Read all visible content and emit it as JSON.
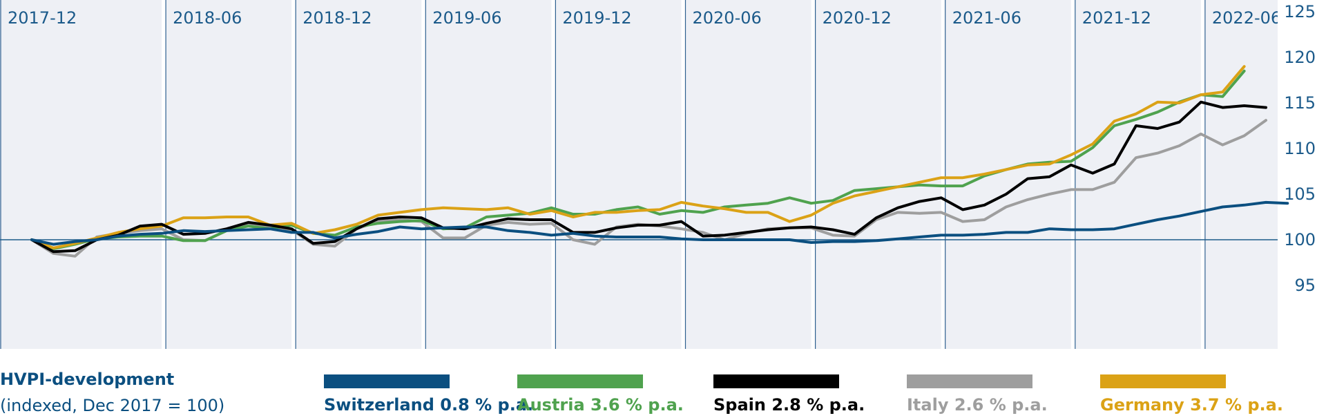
{
  "chart_data": {
    "type": "line",
    "title": "HVPI-development",
    "subtitle": "(indexed, Dec 2017 = 100)",
    "x_labels": [
      "2017-12",
      "2018-06",
      "2018-12",
      "2019-06",
      "2019-12",
      "2020-06",
      "2020-12",
      "2021-06",
      "2021-12",
      "2022-06"
    ],
    "x_range": [
      "2017-12",
      "2022-08"
    ],
    "y_range": [
      95,
      125
    ],
    "y_ticks": [
      "95",
      "100",
      "105",
      "110",
      "115",
      "120",
      "125"
    ],
    "reference_line": 100,
    "grid": "vertical bands and lines",
    "legend_position": "bottom",
    "series": [
      {
        "name": "Switzerland 0.8 % p.a.",
        "color": "#0b4f80",
        "values": [
          100,
          99.5,
          99.8,
          100.0,
          100.4,
          100.6,
          100.7,
          101.0,
          100.9,
          101.0,
          101.1,
          101.2,
          100.8,
          100.8,
          100.2,
          100.6,
          100.9,
          101.4,
          101.2,
          101.3,
          101.4,
          101.4,
          101.0,
          100.8,
          100.5,
          100.7,
          100.4,
          100.3,
          100.3,
          100.3,
          100.1,
          100.0,
          100.0,
          100.0,
          100.0,
          100.0,
          99.7,
          99.8,
          99.8,
          99.9,
          100.1,
          100.3,
          100.5,
          100.5,
          100.6,
          100.8,
          100.8,
          101.2,
          101.1,
          101.1,
          101.2,
          101.7,
          102.2,
          102.6,
          103.1,
          103.6,
          103.8,
          104.1,
          104.0
        ]
      },
      {
        "name": "Austria 3.6 % p.a.",
        "color": "#4fa24e",
        "values": [
          100,
          99.0,
          99.5,
          100.1,
          100.3,
          100.4,
          100.4,
          99.9,
          99.9,
          101.0,
          101.5,
          101.2,
          101.6,
          100.7,
          100.5,
          101.4,
          101.8,
          102.0,
          102.1,
          101.2,
          101.3,
          102.5,
          102.7,
          102.9,
          103.5,
          102.8,
          102.8,
          103.3,
          103.6,
          102.8,
          103.2,
          103.0,
          103.6,
          103.8,
          104.0,
          104.6,
          104.0,
          104.3,
          105.4,
          105.6,
          105.8,
          106.0,
          105.9,
          105.9,
          107.0,
          107.7,
          108.3,
          108.5,
          108.6,
          110.1,
          112.5,
          113.2,
          114.0,
          115.1,
          115.9,
          115.7,
          118.5
        ]
      },
      {
        "name": "Spain 2.8 % p.a.",
        "color": "#000000",
        "values": [
          100,
          98.7,
          98.8,
          100.0,
          100.5,
          101.5,
          101.7,
          100.6,
          100.7,
          101.2,
          101.9,
          101.6,
          101.2,
          99.6,
          99.8,
          101.2,
          102.3,
          102.5,
          102.4,
          101.3,
          101.2,
          101.8,
          102.3,
          102.2,
          102.2,
          100.8,
          100.8,
          101.3,
          101.6,
          101.6,
          102.0,
          100.4,
          100.5,
          100.8,
          101.1,
          101.3,
          101.4,
          101.1,
          100.6,
          102.4,
          103.5,
          104.2,
          104.6,
          103.3,
          103.8,
          105.0,
          106.7,
          106.9,
          108.2,
          107.3,
          108.3,
          112.5,
          112.2,
          112.9,
          115.1,
          114.5,
          114.7,
          114.5
        ]
      },
      {
        "name": "Italy 2.6 % p.a.",
        "color": "#9e9e9e",
        "values": [
          100,
          98.5,
          98.2,
          100.3,
          100.7,
          101.0,
          101.2,
          100.0,
          99.9,
          101.0,
          101.6,
          101.5,
          101.1,
          99.5,
          99.3,
          101.2,
          102.0,
          102.2,
          102.0,
          100.2,
          100.2,
          101.6,
          101.9,
          101.7,
          101.8,
          100.0,
          99.5,
          101.4,
          101.7,
          101.5,
          101.2,
          100.8,
          100.0,
          100.7,
          101.2,
          101.3,
          101.3,
          100.5,
          100.4,
          102.2,
          103.0,
          102.9,
          103.0,
          102.0,
          102.2,
          103.6,
          104.4,
          105.0,
          105.5,
          105.5,
          106.3,
          109.0,
          109.5,
          110.3,
          111.6,
          110.4,
          111.4,
          113.1
        ]
      },
      {
        "name": "Germany 3.7 % p.a.",
        "color": "#dba216",
        "values": [
          100,
          99.1,
          99.6,
          100.2,
          100.8,
          101.2,
          101.5,
          102.4,
          102.4,
          102.5,
          102.5,
          101.6,
          101.8,
          100.7,
          101.1,
          101.7,
          102.7,
          103.0,
          103.3,
          103.5,
          103.4,
          103.3,
          103.5,
          102.8,
          103.2,
          102.5,
          103.0,
          103.0,
          103.2,
          103.3,
          104.1,
          103.7,
          103.4,
          103.0,
          103.0,
          102.0,
          102.7,
          104.0,
          104.8,
          105.3,
          105.8,
          106.3,
          106.8,
          106.8,
          107.2,
          107.7,
          108.2,
          108.3,
          109.3,
          110.5,
          113.0,
          113.8,
          115.1,
          115.0,
          115.9,
          116.2,
          119.0
        ]
      }
    ]
  }
}
